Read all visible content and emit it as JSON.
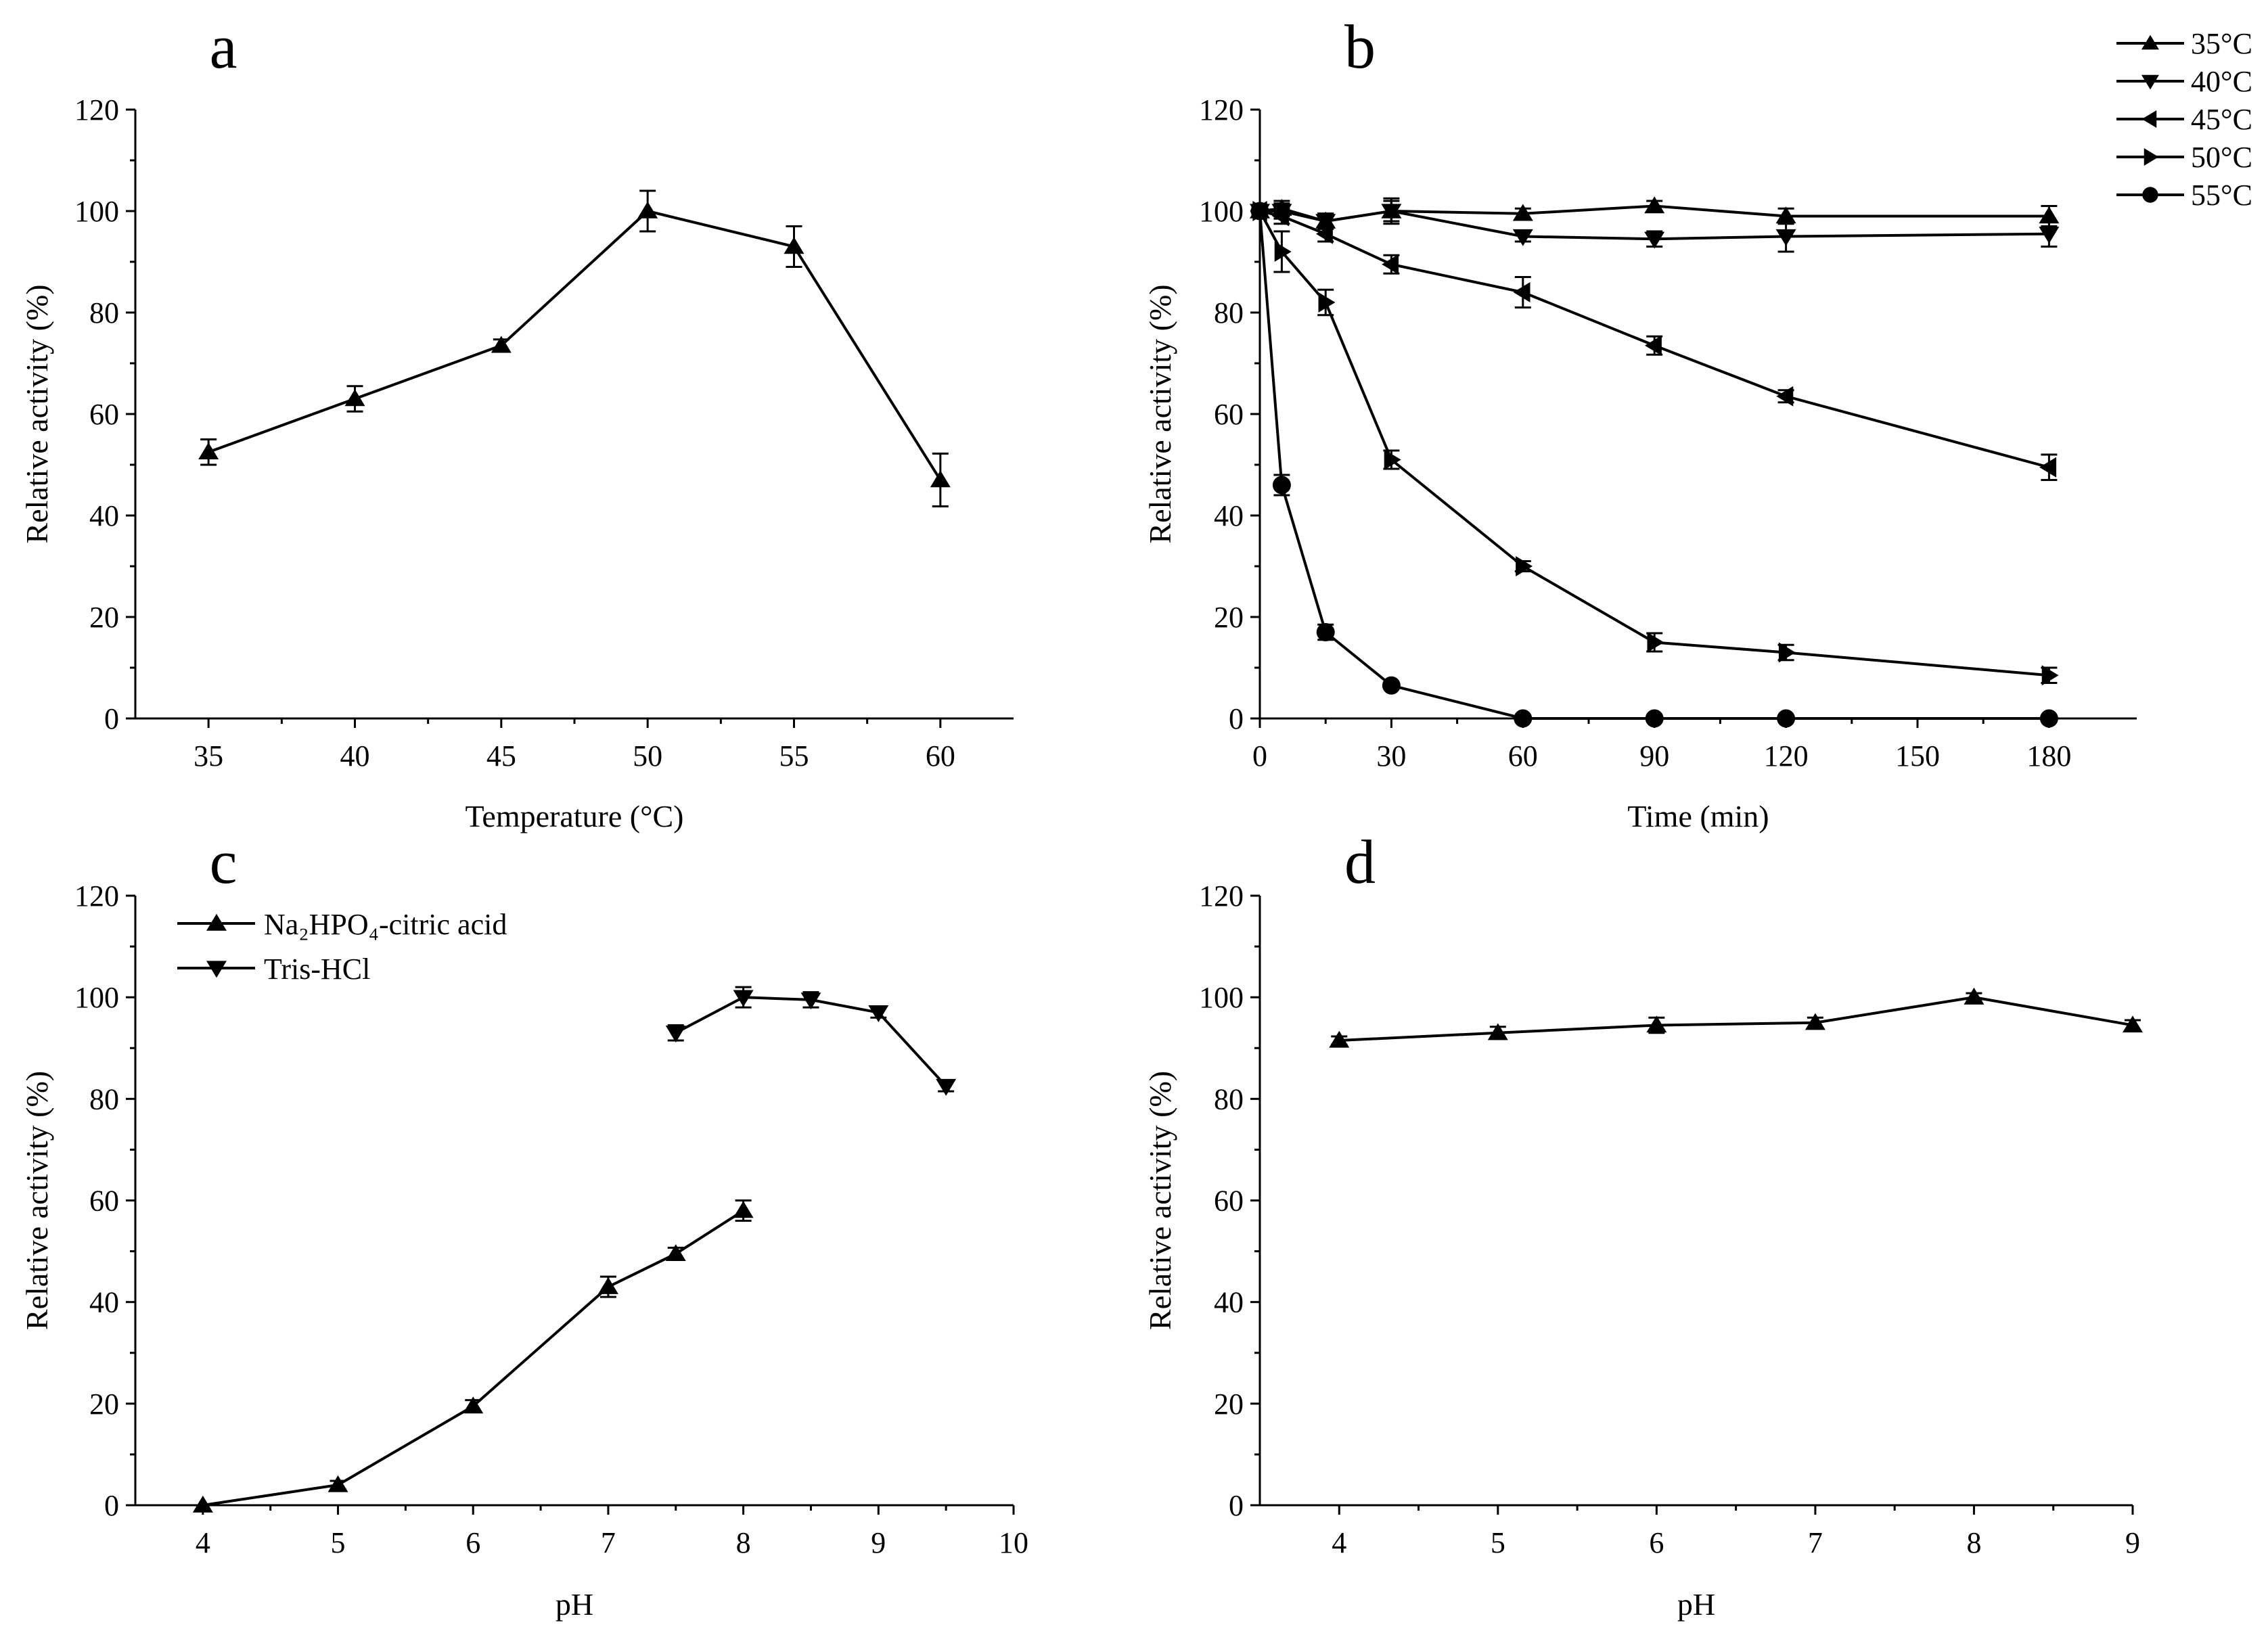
{
  "chart_data": [
    {
      "type": "line",
      "panel_label": "a",
      "xlabel": "Temperature (°C)",
      "ylabel": "Relative activity (%)",
      "xlim": [
        32.5,
        62.5
      ],
      "ylim": [
        0,
        120
      ],
      "xticks": [
        35,
        40,
        45,
        50,
        55,
        60
      ],
      "yticks": [
        0,
        20,
        40,
        60,
        80,
        100,
        120
      ],
      "series": [
        {
          "marker": "triangle-up",
          "x": [
            35,
            40,
            45,
            50,
            55,
            60
          ],
          "y": [
            52.5,
            63,
            73.5,
            100,
            93,
            47
          ],
          "err": [
            2.5,
            2.5,
            1.2,
            4,
            4,
            5.2
          ]
        }
      ]
    },
    {
      "type": "line",
      "panel_label": "b",
      "xlabel": "Time (min)",
      "ylabel": "Relative activity (%)",
      "xlim": [
        0,
        200
      ],
      "ylim": [
        0,
        120
      ],
      "xticks": [
        0,
        30,
        60,
        90,
        120,
        150,
        180
      ],
      "yticks": [
        0,
        20,
        40,
        60,
        80,
        100,
        120
      ],
      "legend": "top-right",
      "series": [
        {
          "name": "35°C",
          "marker": "triangle-up",
          "x": [
            0,
            5,
            15,
            30,
            60,
            90,
            120,
            180
          ],
          "y": [
            100,
            100.5,
            98,
            100,
            99.5,
            101,
            99,
            99
          ],
          "err": [
            1,
            1.5,
            1.5,
            2,
            1,
            1,
            1.5,
            2
          ]
        },
        {
          "name": "40°C",
          "marker": "triangle-down",
          "x": [
            0,
            5,
            15,
            30,
            60,
            90,
            120,
            180
          ],
          "y": [
            100,
            100,
            98,
            100,
            95,
            94.5,
            95,
            95.5
          ],
          "err": [
            1,
            1.5,
            1.5,
            2.5,
            1,
            1.5,
            3,
            2.5
          ]
        },
        {
          "name": "45°C",
          "marker": "triangle-left",
          "x": [
            0,
            5,
            15,
            30,
            60,
            90,
            120,
            180
          ],
          "y": [
            100,
            99,
            95.5,
            89.5,
            84,
            73.5,
            63.5,
            49.5
          ],
          "err": [
            1,
            1.5,
            1.5,
            1.8,
            3,
            1.8,
            1.2,
            2.5
          ]
        },
        {
          "name": "50°C",
          "marker": "triangle-right",
          "x": [
            0,
            5,
            15,
            30,
            60,
            90,
            120,
            180
          ],
          "y": [
            100,
            92,
            82,
            51,
            30,
            15,
            13,
            8.5
          ],
          "err": [
            1,
            4,
            2.5,
            1.8,
            1,
            1.8,
            1.5,
            1.5
          ]
        },
        {
          "name": "55°C",
          "marker": "circle",
          "x": [
            0,
            5,
            15,
            30,
            60,
            90,
            120,
            180
          ],
          "y": [
            100,
            46,
            17,
            6.5,
            0,
            0,
            0,
            0
          ],
          "err": [
            1,
            2,
            1.5,
            0,
            0,
            0,
            0,
            0
          ]
        }
      ]
    },
    {
      "type": "line",
      "panel_label": "c",
      "xlabel": "pH",
      "ylabel": "Relative activity (%)",
      "xlim": [
        3.5,
        10
      ],
      "ylim": [
        0,
        120
      ],
      "xticks": [
        4,
        5,
        6,
        7,
        8,
        9,
        10
      ],
      "yticks": [
        0,
        20,
        40,
        60,
        80,
        100,
        120
      ],
      "legend": "top-left",
      "series": [
        {
          "name": "Na₂HPO₄-citric acid",
          "marker": "triangle-up",
          "x": [
            4,
            5,
            6,
            7,
            7.5,
            8
          ],
          "y": [
            0,
            4,
            19.5,
            43,
            49.5,
            58
          ],
          "err": [
            0,
            0.8,
            1.2,
            2,
            1.2,
            2
          ]
        },
        {
          "name": "Tris-HCl",
          "marker": "triangle-down",
          "x": [
            7.5,
            8,
            8.5,
            9,
            9.5
          ],
          "y": [
            93,
            100,
            99.5,
            97,
            82.5
          ],
          "err": [
            1.5,
            2,
            1.5,
            1,
            1
          ]
        }
      ]
    },
    {
      "type": "line",
      "panel_label": "d",
      "xlabel": "pH",
      "ylabel": "Relative activity (%)",
      "xlim": [
        3.5,
        9
      ],
      "ylim": [
        0,
        120
      ],
      "xticks": [
        4,
        5,
        6,
        7,
        8,
        9
      ],
      "yticks": [
        0,
        20,
        40,
        60,
        80,
        100,
        120
      ],
      "series": [
        {
          "marker": "triangle-up",
          "x": [
            4,
            5,
            6,
            7,
            8,
            9
          ],
          "y": [
            91.5,
            93,
            94.5,
            95,
            100,
            94.5
          ],
          "err": [
            0.8,
            1.2,
            1.5,
            1,
            0.8,
            1
          ]
        }
      ]
    }
  ]
}
